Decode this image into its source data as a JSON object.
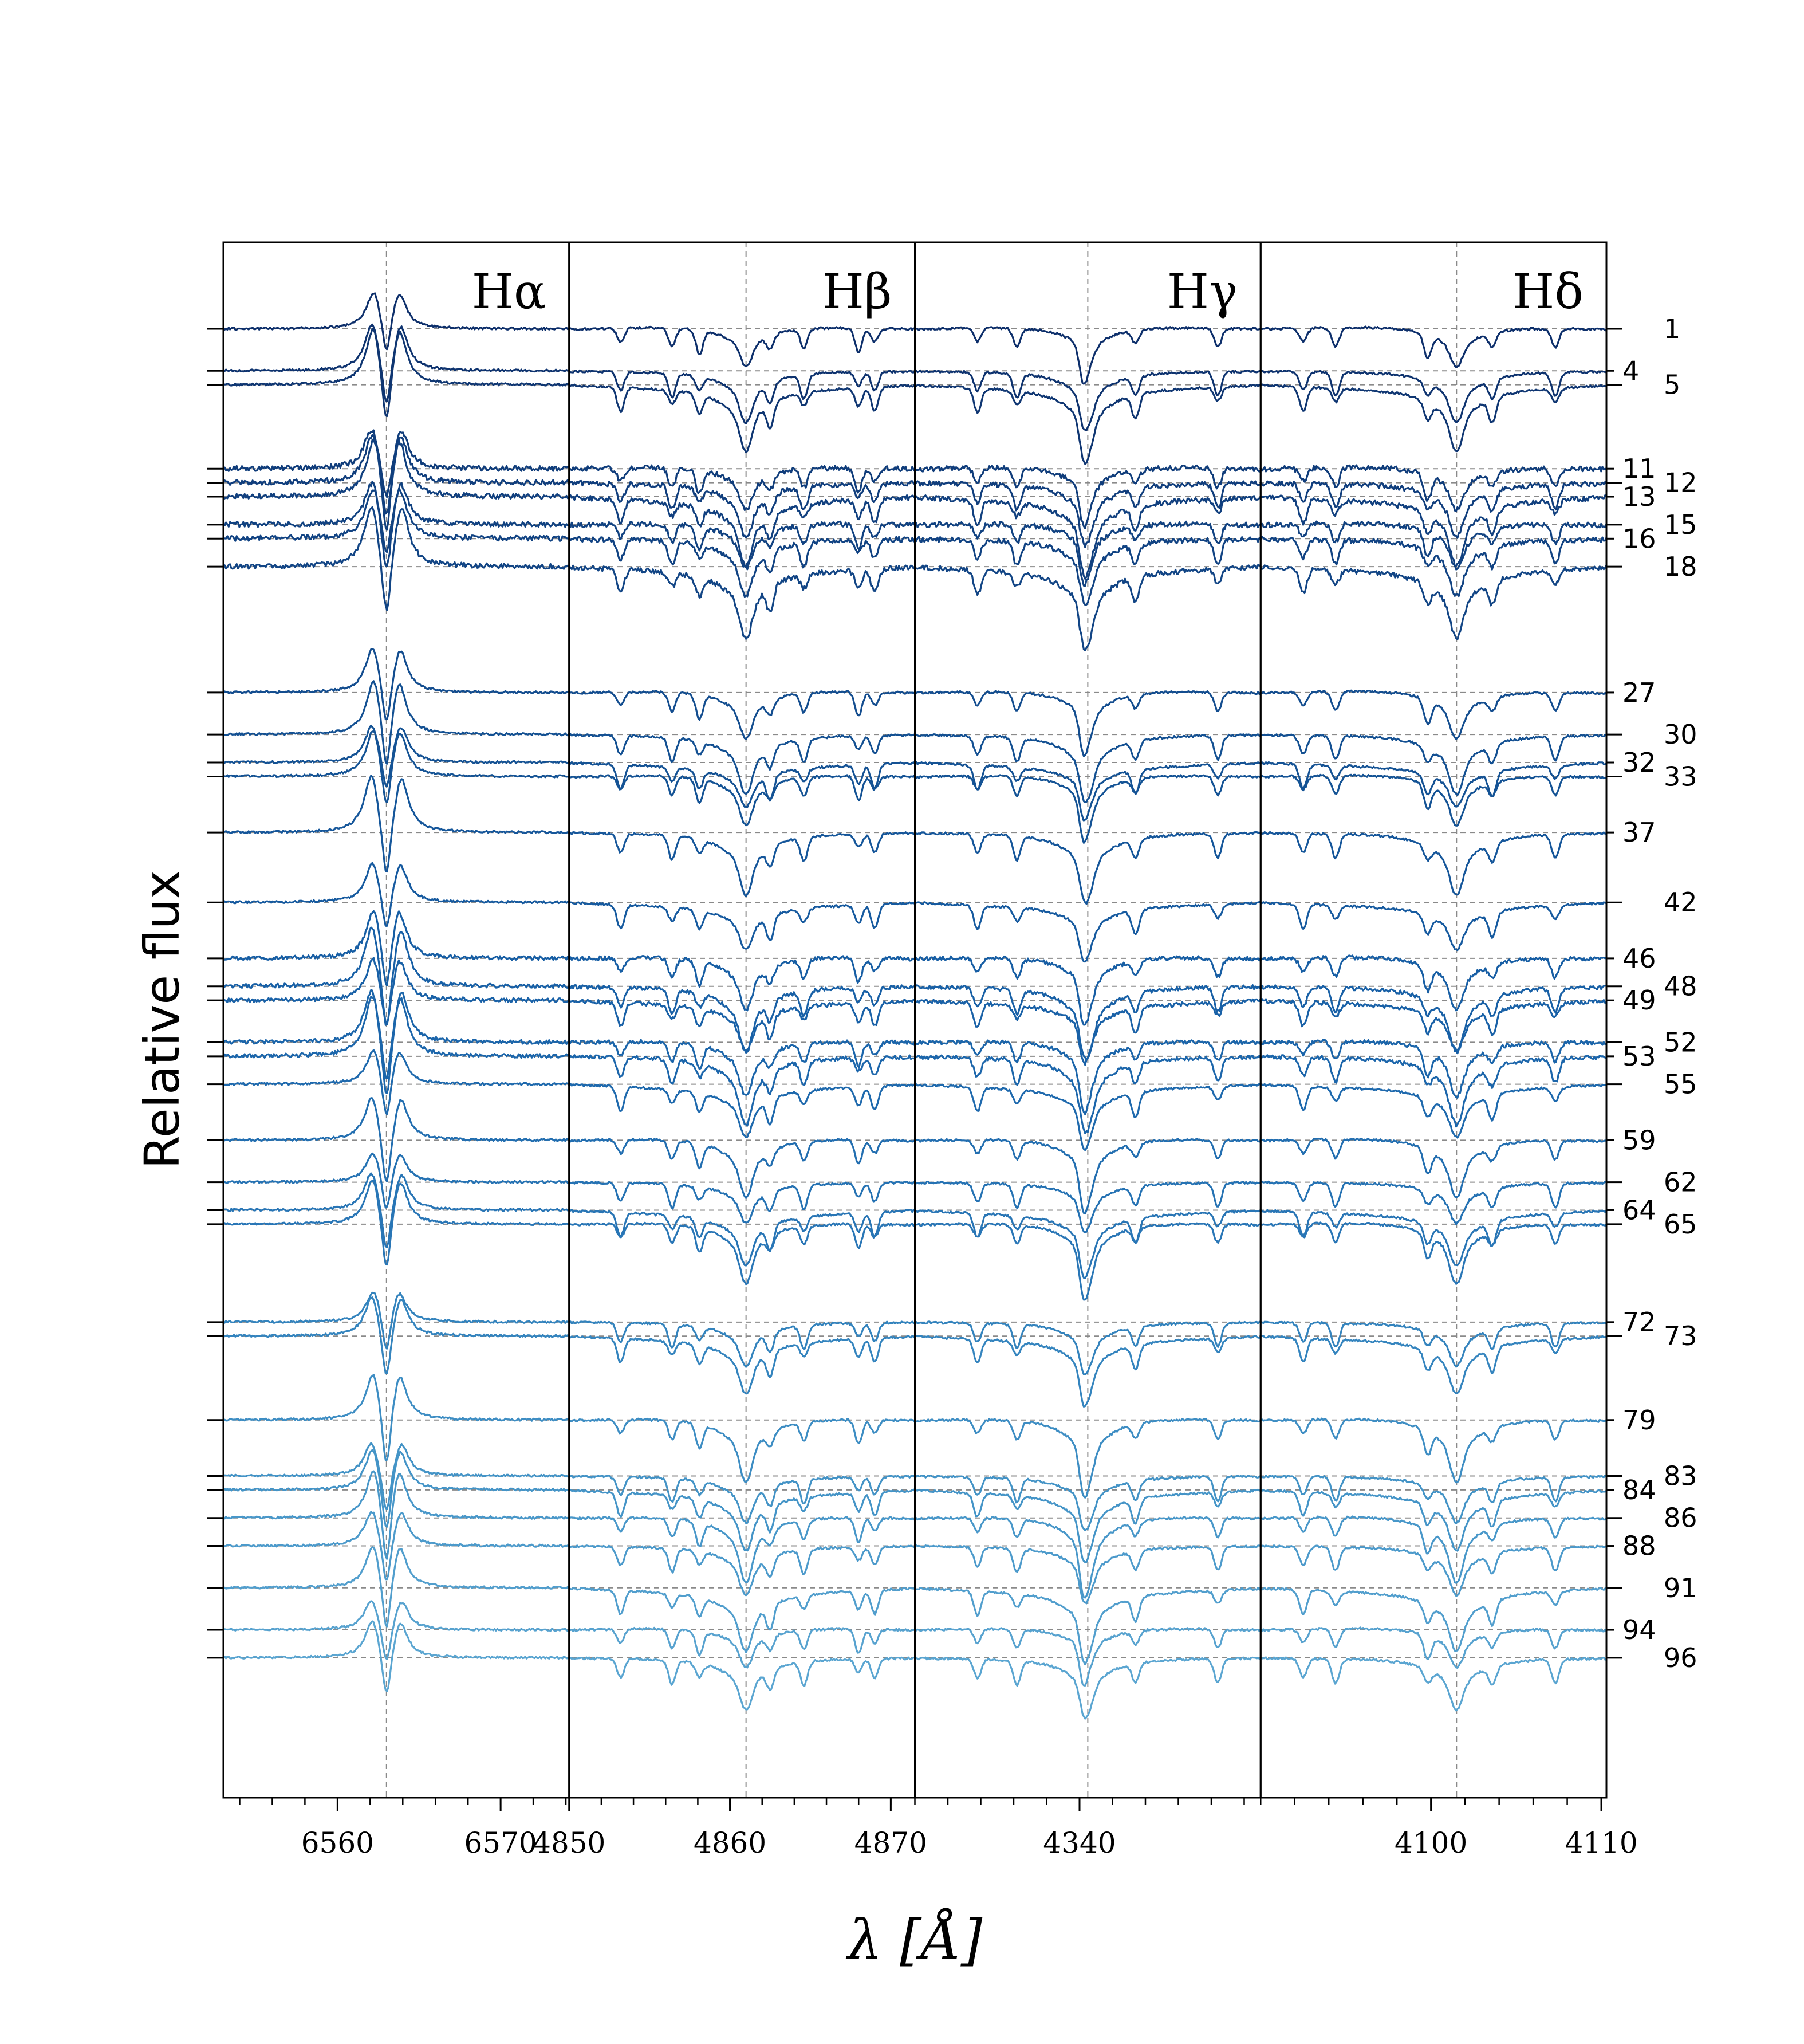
{
  "chart_data": {
    "type": "line",
    "xlabel": "λ [Å]",
    "ylabel": "Relative flux",
    "panels": [
      {
        "name": "Hα",
        "xlim": [
          6553.0,
          6574.2
        ],
        "center": 6563.0,
        "ticks": [
          6560,
          6570
        ],
        "tick_labels": [
          "6560",
          "6570"
        ],
        "profile": "emission"
      },
      {
        "name": "Hβ",
        "xlim": [
          4850.0,
          4871.5
        ],
        "center": 4861.0,
        "ticks": [
          4850,
          4860,
          4870
        ],
        "tick_labels": [
          "4850",
          "4860",
          "4870"
        ],
        "profile": "absorption"
      },
      {
        "name": "Hγ",
        "xlim": [
          4330.0,
          4351.0
        ],
        "center": 4340.5,
        "ticks": [
          4340
        ],
        "tick_labels": [
          "4340"
        ],
        "profile": "absorption"
      },
      {
        "name": "Hδ",
        "xlim": [
          4090.0,
          4110.3
        ],
        "center": 4101.5,
        "ticks": [
          4100,
          4110
        ],
        "tick_labels": [
          "4100",
          "4110"
        ],
        "profile": "absorption"
      }
    ],
    "series": [
      {
        "label": "1",
        "offset": 1,
        "label_side": "outer",
        "color": "#0d2f6b"
      },
      {
        "label": "4",
        "offset": 4,
        "label_side": "inner",
        "color": "#0e336f"
      },
      {
        "label": "5",
        "offset": 5,
        "label_side": "outer",
        "color": "#0f3672"
      },
      {
        "label": "11",
        "offset": 11,
        "label_side": "inner",
        "color": "#103d7b"
      },
      {
        "label": "12",
        "offset": 12,
        "label_side": "outer",
        "color": "#103e7d"
      },
      {
        "label": "13",
        "offset": 13,
        "label_side": "inner",
        "color": "#11407f"
      },
      {
        "label": "15",
        "offset": 15,
        "label_side": "outer",
        "color": "#114281"
      },
      {
        "label": "16",
        "offset": 16,
        "label_side": "inner",
        "color": "#114383"
      },
      {
        "label": "18",
        "offset": 18,
        "label_side": "outer",
        "color": "#124585"
      },
      {
        "label": "27",
        "offset": 27,
        "label_side": "inner",
        "color": "#134d8f"
      },
      {
        "label": "30",
        "offset": 30,
        "label_side": "outer",
        "color": "#135092"
      },
      {
        "label": "32",
        "offset": 32,
        "label_side": "inner",
        "color": "#145294"
      },
      {
        "label": "33",
        "offset": 33,
        "label_side": "outer",
        "color": "#145395"
      },
      {
        "label": "37",
        "offset": 37,
        "label_side": "inner",
        "color": "#15569a"
      },
      {
        "label": "42",
        "offset": 42,
        "label_side": "outer",
        "color": "#165a9f"
      },
      {
        "label": "46",
        "offset": 46,
        "label_side": "inner",
        "color": "#175ea4"
      },
      {
        "label": "48",
        "offset": 48,
        "label_side": "outer",
        "color": "#1860a6"
      },
      {
        "label": "49",
        "offset": 49,
        "label_side": "inner",
        "color": "#1961a7"
      },
      {
        "label": "52",
        "offset": 52,
        "label_side": "outer",
        "color": "#1b65aa"
      },
      {
        "label": "53",
        "offset": 53,
        "label_side": "inner",
        "color": "#1c66ab"
      },
      {
        "label": "55",
        "offset": 55,
        "label_side": "outer",
        "color": "#1e69ad"
      },
      {
        "label": "59",
        "offset": 59,
        "label_side": "inner",
        "color": "#226eb0"
      },
      {
        "label": "62",
        "offset": 62,
        "label_side": "outer",
        "color": "#2572b3"
      },
      {
        "label": "64",
        "offset": 64,
        "label_side": "inner",
        "color": "#2875b5"
      },
      {
        "label": "65",
        "offset": 65,
        "label_side": "outer",
        "color": "#2976b6"
      },
      {
        "label": "72",
        "offset": 72,
        "label_side": "inner",
        "color": "#3383bd"
      },
      {
        "label": "73",
        "offset": 73,
        "label_side": "outer",
        "color": "#3484be"
      },
      {
        "label": "79",
        "offset": 79,
        "label_side": "inner",
        "color": "#3d8dc3"
      },
      {
        "label": "83",
        "offset": 83,
        "label_side": "outer",
        "color": "#4393c6"
      },
      {
        "label": "84",
        "offset": 84,
        "label_side": "inner",
        "color": "#4494c7"
      },
      {
        "label": "86",
        "offset": 86,
        "label_side": "outer",
        "color": "#4897c9"
      },
      {
        "label": "88",
        "offset": 88,
        "label_side": "inner",
        "color": "#4c9acb"
      },
      {
        "label": "91",
        "offset": 91,
        "label_side": "outer",
        "color": "#519ecd"
      },
      {
        "label": "94",
        "offset": 94,
        "label_side": "inner",
        "color": "#57a2cf"
      },
      {
        "label": "96",
        "offset": 96,
        "label_side": "outer",
        "color": "#5aa5d1"
      }
    ],
    "grid": "horizontal dashed reference lines at each spectrum's continuum; vertical dashed line at each line center"
  }
}
